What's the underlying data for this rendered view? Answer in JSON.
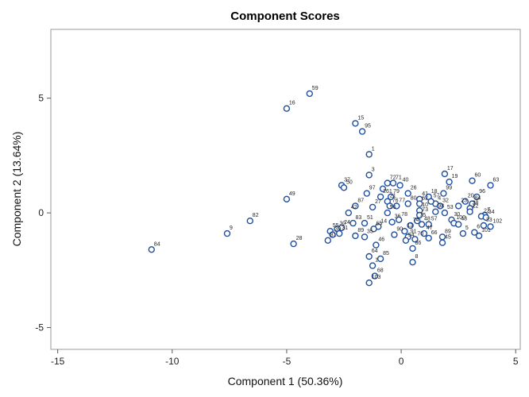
{
  "chart_data": {
    "type": "scatter",
    "title": "Component Scores",
    "xlabel": "Component 1 (50.36%)",
    "ylabel": "Component 2 (13.64%)",
    "xlim": [
      -15.3,
      5.2
    ],
    "ylim": [
      -5.95,
      8.0
    ],
    "xticks": [
      -15,
      -10,
      -5,
      0,
      5
    ],
    "yticks": [
      -5,
      0,
      5
    ],
    "grid": false,
    "marker_color": "#1f4e9e",
    "points": [
      {
        "label": "84",
        "x": -10.9,
        "y": -1.6
      },
      {
        "label": "9",
        "x": -7.6,
        "y": -0.9
      },
      {
        "label": "82",
        "x": -6.6,
        "y": -0.35
      },
      {
        "label": "49",
        "x": -5.0,
        "y": 0.6
      },
      {
        "label": "28",
        "x": -4.7,
        "y": -1.35
      },
      {
        "label": "16",
        "x": -5.0,
        "y": 4.55
      },
      {
        "label": "59",
        "x": -4.0,
        "y": 5.2
      },
      {
        "label": "15",
        "x": -2.0,
        "y": 3.9
      },
      {
        "label": "95",
        "x": -1.7,
        "y": 3.55
      },
      {
        "label": "1",
        "x": -1.4,
        "y": 2.55
      },
      {
        "label": "3",
        "x": -1.4,
        "y": 1.65
      },
      {
        "label": "37",
        "x": -2.6,
        "y": 1.2
      },
      {
        "label": "50",
        "x": -2.5,
        "y": 1.1
      },
      {
        "label": "97",
        "x": -1.5,
        "y": 0.85
      },
      {
        "label": "93",
        "x": -0.8,
        "y": 1.05
      },
      {
        "label": "72",
        "x": -0.6,
        "y": 1.3
      },
      {
        "label": "71",
        "x": -0.35,
        "y": 1.3
      },
      {
        "label": "40",
        "x": -0.05,
        "y": 1.2
      },
      {
        "label": "26",
        "x": 0.3,
        "y": 0.85
      },
      {
        "label": "261",
        "x": -0.9,
        "y": 0.7
      },
      {
        "label": "79",
        "x": -0.45,
        "y": 0.7
      },
      {
        "label": "21",
        "x": -0.6,
        "y": 0.5
      },
      {
        "label": "17",
        "x": 1.9,
        "y": 1.7
      },
      {
        "label": "19",
        "x": 2.1,
        "y": 1.35
      },
      {
        "label": "60",
        "x": 3.1,
        "y": 1.4
      },
      {
        "label": "63",
        "x": 3.9,
        "y": 1.2
      },
      {
        "label": "41",
        "x": 0.8,
        "y": 0.6
      },
      {
        "label": "18",
        "x": 1.2,
        "y": 0.7
      },
      {
        "label": "99",
        "x": 1.85,
        "y": 0.85
      },
      {
        "label": "96",
        "x": 3.3,
        "y": 0.7
      },
      {
        "label": "20",
        "x": 2.8,
        "y": 0.5
      },
      {
        "label": "84",
        "x": 3.1,
        "y": 0.4
      },
      {
        "label": "23",
        "x": 2.5,
        "y": 0.3
      },
      {
        "label": "4",
        "x": 1.5,
        "y": 0.4
      },
      {
        "label": "32",
        "x": 1.7,
        "y": 0.3
      },
      {
        "label": "38",
        "x": 3.0,
        "y": 0.2
      },
      {
        "label": "62",
        "x": 0.8,
        "y": 0.4
      },
      {
        "label": "57",
        "x": 1.3,
        "y": 0.5
      },
      {
        "label": "80",
        "x": 0.3,
        "y": 0.4
      },
      {
        "label": "10",
        "x": 0.8,
        "y": 0.1
      },
      {
        "label": "98",
        "x": 1.5,
        "y": 0.05
      },
      {
        "label": "53",
        "x": 1.9,
        "y": 0.0
      },
      {
        "label": "76",
        "x": -0.5,
        "y": 0.3
      },
      {
        "label": "77",
        "x": -0.2,
        "y": 0.3
      },
      {
        "label": "27",
        "x": -1.25,
        "y": 0.25
      },
      {
        "label": "87",
        "x": -2.0,
        "y": 0.3
      },
      {
        "label": "42",
        "x": -2.3,
        "y": 0.0
      },
      {
        "label": "56",
        "x": -0.6,
        "y": 0.0
      },
      {
        "label": "73",
        "x": 0.8,
        "y": -0.1
      },
      {
        "label": "12",
        "x": 3.0,
        "y": 0.05
      },
      {
        "label": "7",
        "x": 3.65,
        "y": -0.1
      },
      {
        "label": "22",
        "x": 3.5,
        "y": -0.15
      },
      {
        "label": "34",
        "x": 3.7,
        "y": -0.2
      },
      {
        "label": "30",
        "x": 2.2,
        "y": -0.3
      },
      {
        "label": "100",
        "x": 2.3,
        "y": -0.45
      },
      {
        "label": "43",
        "x": 2.5,
        "y": -0.5
      },
      {
        "label": "33",
        "x": 3.6,
        "y": -0.55
      },
      {
        "label": "102",
        "x": 3.9,
        "y": -0.6
      },
      {
        "label": "75",
        "x": 0.7,
        "y": -0.35
      },
      {
        "label": "48",
        "x": 0.9,
        "y": -0.5
      },
      {
        "label": "57",
        "x": 1.2,
        "y": -0.5
      },
      {
        "label": "36",
        "x": -0.4,
        "y": -0.4
      },
      {
        "label": "78",
        "x": -0.1,
        "y": -0.3
      },
      {
        "label": "74",
        "x": 0.4,
        "y": -0.55
      },
      {
        "label": "14",
        "x": -1.0,
        "y": -0.6
      },
      {
        "label": "13",
        "x": 0.15,
        "y": -0.8
      },
      {
        "label": "83",
        "x": -2.1,
        "y": -0.45
      },
      {
        "label": "51",
        "x": -1.6,
        "y": -0.45
      },
      {
        "label": "65",
        "x": -1.2,
        "y": -0.7
      },
      {
        "label": "55",
        "x": -3.1,
        "y": -0.8
      },
      {
        "label": "30",
        "x": -2.8,
        "y": -0.7
      },
      {
        "label": "24",
        "x": -2.6,
        "y": -0.65
      },
      {
        "label": "39",
        "x": -3.0,
        "y": -0.95
      },
      {
        "label": "31",
        "x": -2.7,
        "y": -0.9
      },
      {
        "label": "89",
        "x": -2.0,
        "y": -1.0
      },
      {
        "label": "35",
        "x": -1.6,
        "y": -1.05
      },
      {
        "label": "90",
        "x": -0.3,
        "y": -0.95
      },
      {
        "label": "91",
        "x": 0.3,
        "y": -1.05
      },
      {
        "label": "47",
        "x": 1.0,
        "y": -0.9
      },
      {
        "label": "70",
        "x": 0.6,
        "y": -1.15
      },
      {
        "label": "66",
        "x": 1.2,
        "y": -1.1
      },
      {
        "label": "89",
        "x": 1.8,
        "y": -1.05
      },
      {
        "label": "5",
        "x": 2.7,
        "y": -0.9
      },
      {
        "label": "6",
        "x": 3.2,
        "y": -0.85
      },
      {
        "label": "101",
        "x": 3.4,
        "y": -1.0
      },
      {
        "label": "81",
        "x": -3.2,
        "y": -1.2
      },
      {
        "label": "46",
        "x": -1.1,
        "y": -1.4
      },
      {
        "label": "54",
        "x": 0.2,
        "y": -1.2
      },
      {
        "label": "86",
        "x": 0.5,
        "y": -1.55
      },
      {
        "label": "45",
        "x": 1.8,
        "y": -1.3
      },
      {
        "label": "64",
        "x": -1.4,
        "y": -1.9
      },
      {
        "label": "85",
        "x": -0.9,
        "y": -2.0
      },
      {
        "label": "8",
        "x": 0.5,
        "y": -2.15
      },
      {
        "label": "1",
        "x": -1.25,
        "y": -2.3
      },
      {
        "label": "68",
        "x": -1.15,
        "y": -2.75
      },
      {
        "label": "103",
        "x": -1.4,
        "y": -3.05
      }
    ]
  }
}
